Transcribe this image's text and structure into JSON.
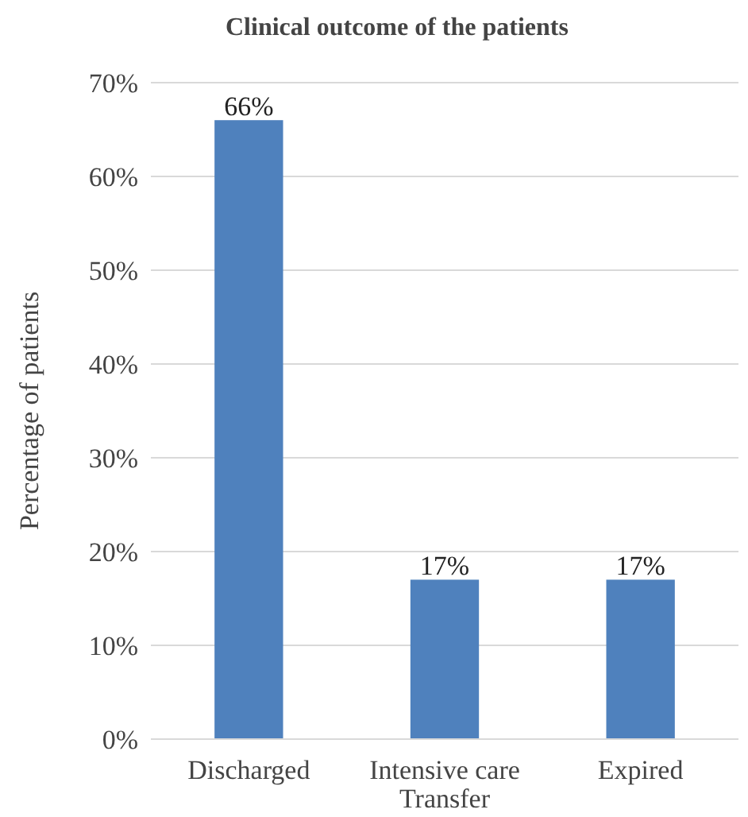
{
  "chart_data": {
    "type": "bar",
    "title": "Clinical outcome of the patients",
    "ylabel": "Percentage of patients",
    "categories": [
      "Discharged",
      "Intensive care Transfer",
      "Expired"
    ],
    "values": [
      66,
      17,
      17
    ],
    "color": "#4f81bd",
    "value_labels": [
      "66%",
      "17%",
      "17%"
    ],
    "ylim": [
      0,
      70
    ],
    "yticks": [
      {
        "value": 0,
        "label": "0%"
      },
      {
        "value": 10,
        "label": "10%"
      },
      {
        "value": 20,
        "label": "20%"
      },
      {
        "value": 30,
        "label": "30%"
      },
      {
        "value": 40,
        "label": "40%"
      },
      {
        "value": 50,
        "label": "50%"
      },
      {
        "value": 60,
        "label": "60%"
      },
      {
        "value": 70,
        "label": "70%"
      }
    ],
    "grid": "y"
  }
}
